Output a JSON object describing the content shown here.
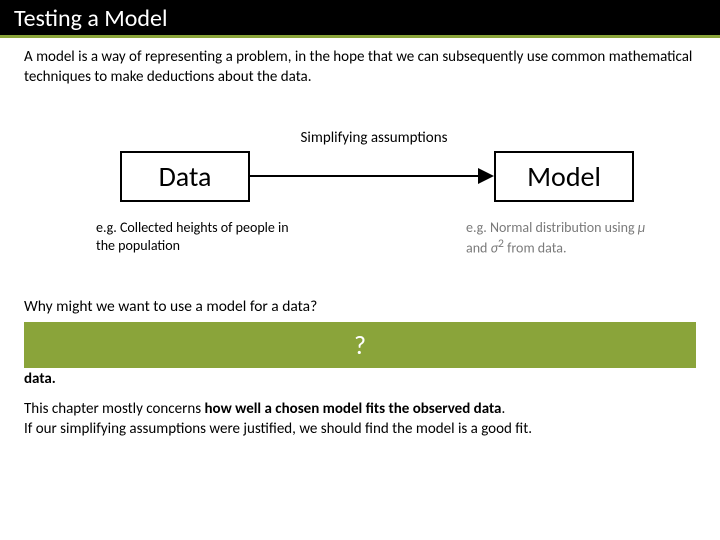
{
  "title": "Testing a Model",
  "intro": "A model is a way of representing a problem, in the hope that we can subsequently use common mathematical techniques to make deductions about the data.",
  "diagram": {
    "data_box": "Data",
    "model_box": "Model",
    "assumption_label": "Simplifying assumptions",
    "caption_left": "e.g. Collected heights of people in the population",
    "caption_right_prefix": "e.g. Normal distribution using ",
    "caption_right_mu": "μ",
    "caption_right_mid": " and ",
    "caption_right_sigma": "σ",
    "caption_right_sq": "2",
    "caption_right_suffix": " from data.",
    "box_border_color": "#000000",
    "arrow_color": "#000000"
  },
  "why_question": "Why might we want to use a model for a data?",
  "green_placeholder": "?",
  "data_bold": "data.",
  "conclusion_line1_a": "This chapter mostly concerns ",
  "conclusion_line1_b": "how well a chosen model fits the observed data",
  "conclusion_line1_c": ".",
  "conclusion_line2": "If our simplifying assumptions were justified, we should find the model is a good fit.",
  "colors": {
    "accent_green": "#8aa43a",
    "title_bg": "#000000",
    "title_fg": "#ffffff",
    "caption_muted": "#7a7a7a",
    "background": "#ffffff"
  },
  "typography": {
    "title_fontsize": 24,
    "body_fontsize": 15,
    "box_fontsize": 28,
    "caption_fontsize": 14
  }
}
